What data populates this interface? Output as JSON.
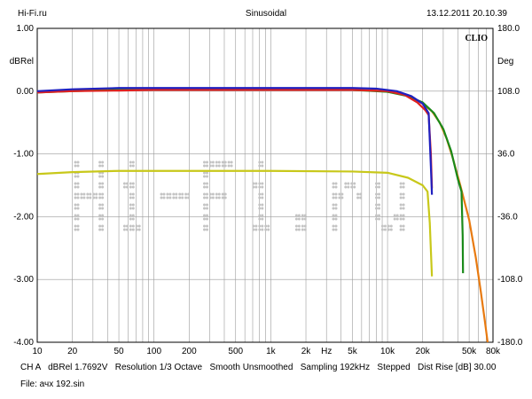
{
  "header": {
    "left": "Hi-Fi.ru",
    "center": "Sinusoidal",
    "right": "13.12.2011 20.10.39"
  },
  "brand": "CLIO",
  "footer": {
    "line1": "CH A   dBRel 1.7692V   Resolution 1/3 Octave   Smooth Unsmoothed   Sampling 192kHz   Stepped   Dist Rise [dB] 30.00",
    "line2": "File: ачх 192.sin"
  },
  "colors": {
    "background": "#ffffff",
    "grid": "#9a9a9a",
    "watermark": "#c4c4c4"
  },
  "watermark": "Hi-Fi.ru",
  "chart_data": {
    "type": "line",
    "title": "",
    "xlabel": "Hz",
    "ylabel": "dBRel",
    "y2label": "Deg",
    "x_scale": "log",
    "xlim": [
      10,
      80000
    ],
    "ylim": [
      -4.0,
      1.0
    ],
    "y2lim": [
      -180.0,
      180.0
    ],
    "grid": true,
    "x_tick_labels": [
      {
        "x": 10,
        "label": "10"
      },
      {
        "x": 20,
        "label": "20"
      },
      {
        "x": 50,
        "label": "50"
      },
      {
        "x": 100,
        "label": "100"
      },
      {
        "x": 200,
        "label": "200"
      },
      {
        "x": 500,
        "label": "500"
      },
      {
        "x": 1000,
        "label": "1k"
      },
      {
        "x": 2000,
        "label": "2k"
      },
      {
        "x": 3000,
        "label": "Hz"
      },
      {
        "x": 5000,
        "label": "5k"
      },
      {
        "x": 10000,
        "label": "10k"
      },
      {
        "x": 20000,
        "label": "20k"
      },
      {
        "x": 50000,
        "label": "50k"
      },
      {
        "x": 80000,
        "label": "80k"
      }
    ],
    "y_tick_labels": [
      {
        "y": 1.0,
        "label": "1.00"
      },
      {
        "y": 0.0,
        "label": "0.00"
      },
      {
        "y": -1.0,
        "label": "-1.00"
      },
      {
        "y": -2.0,
        "label": "-2.00"
      },
      {
        "y": -3.0,
        "label": "-3.00"
      },
      {
        "y": -4.0,
        "label": "-4.00"
      }
    ],
    "y2_tick_labels": [
      {
        "y": 180.0,
        "label": "180.0"
      },
      {
        "y": 108.0,
        "label": "108.0"
      },
      {
        "y": 36.0,
        "label": "36.0"
      },
      {
        "y": -36.0,
        "label": "-36.0"
      },
      {
        "y": -108.0,
        "label": "-108.0"
      },
      {
        "y": -180.0,
        "label": "-180.0"
      }
    ],
    "series": [
      {
        "color": "#e87a10",
        "points": [
          [
            10,
            -0.02
          ],
          [
            20,
            0.01
          ],
          [
            50,
            0.02
          ],
          [
            100,
            0.02
          ],
          [
            1000,
            0.02
          ],
          [
            5000,
            0.02
          ],
          [
            8000,
            0.01
          ],
          [
            10000,
            -0.01
          ],
          [
            13000,
            -0.04
          ],
          [
            16000,
            -0.1
          ],
          [
            20000,
            -0.2
          ],
          [
            24000,
            -0.32
          ],
          [
            28000,
            -0.5
          ],
          [
            32000,
            -0.75
          ],
          [
            36000,
            -1.05
          ],
          [
            42000,
            -1.5
          ],
          [
            50000,
            -2.05
          ],
          [
            57000,
            -2.65
          ],
          [
            63000,
            -3.2
          ],
          [
            68000,
            -3.65
          ],
          [
            72000,
            -4.0
          ]
        ]
      },
      {
        "color": "#1a8a1a",
        "points": [
          [
            10,
            -0.02
          ],
          [
            20,
            0.0
          ],
          [
            50,
            0.02
          ],
          [
            100,
            0.02
          ],
          [
            1000,
            0.02
          ],
          [
            5000,
            0.02
          ],
          [
            10000,
            -0.01
          ],
          [
            15000,
            -0.08
          ],
          [
            20000,
            -0.18
          ],
          [
            25000,
            -0.35
          ],
          [
            30000,
            -0.6
          ],
          [
            35000,
            -0.95
          ],
          [
            40000,
            -1.4
          ],
          [
            43000,
            -1.6
          ],
          [
            44000,
            -2.3
          ],
          [
            44300,
            -2.9
          ]
        ]
      },
      {
        "color": "#e02020",
        "points": [
          [
            10,
            -0.02
          ],
          [
            20,
            0.0
          ],
          [
            50,
            0.01
          ],
          [
            100,
            0.02
          ],
          [
            1000,
            0.02
          ],
          [
            5000,
            0.02
          ],
          [
            10000,
            0.0
          ],
          [
            14000,
            -0.06
          ],
          [
            18000,
            -0.18
          ],
          [
            21000,
            -0.3
          ],
          [
            22500,
            -0.38
          ],
          [
            23500,
            -1.0
          ],
          [
            24000,
            -1.55
          ]
        ]
      },
      {
        "color": "#2020c0",
        "points": [
          [
            10,
            0.0
          ],
          [
            20,
            0.03
          ],
          [
            50,
            0.05
          ],
          [
            100,
            0.05
          ],
          [
            1000,
            0.05
          ],
          [
            5000,
            0.05
          ],
          [
            8000,
            0.04
          ],
          [
            12000,
            0.0
          ],
          [
            16000,
            -0.08
          ],
          [
            20000,
            -0.2
          ],
          [
            22500,
            -0.35
          ],
          [
            23500,
            -1.2
          ],
          [
            24000,
            -1.65
          ]
        ]
      },
      {
        "color": "#c8c81a",
        "points": [
          [
            10,
            -1.32
          ],
          [
            20,
            -1.29
          ],
          [
            50,
            -1.27
          ],
          [
            100,
            -1.27
          ],
          [
            1000,
            -1.27
          ],
          [
            5000,
            -1.28
          ],
          [
            10000,
            -1.3
          ],
          [
            15000,
            -1.38
          ],
          [
            20000,
            -1.5
          ],
          [
            22000,
            -1.6
          ],
          [
            23000,
            -2.1
          ],
          [
            24000,
            -2.95
          ]
        ]
      }
    ]
  }
}
